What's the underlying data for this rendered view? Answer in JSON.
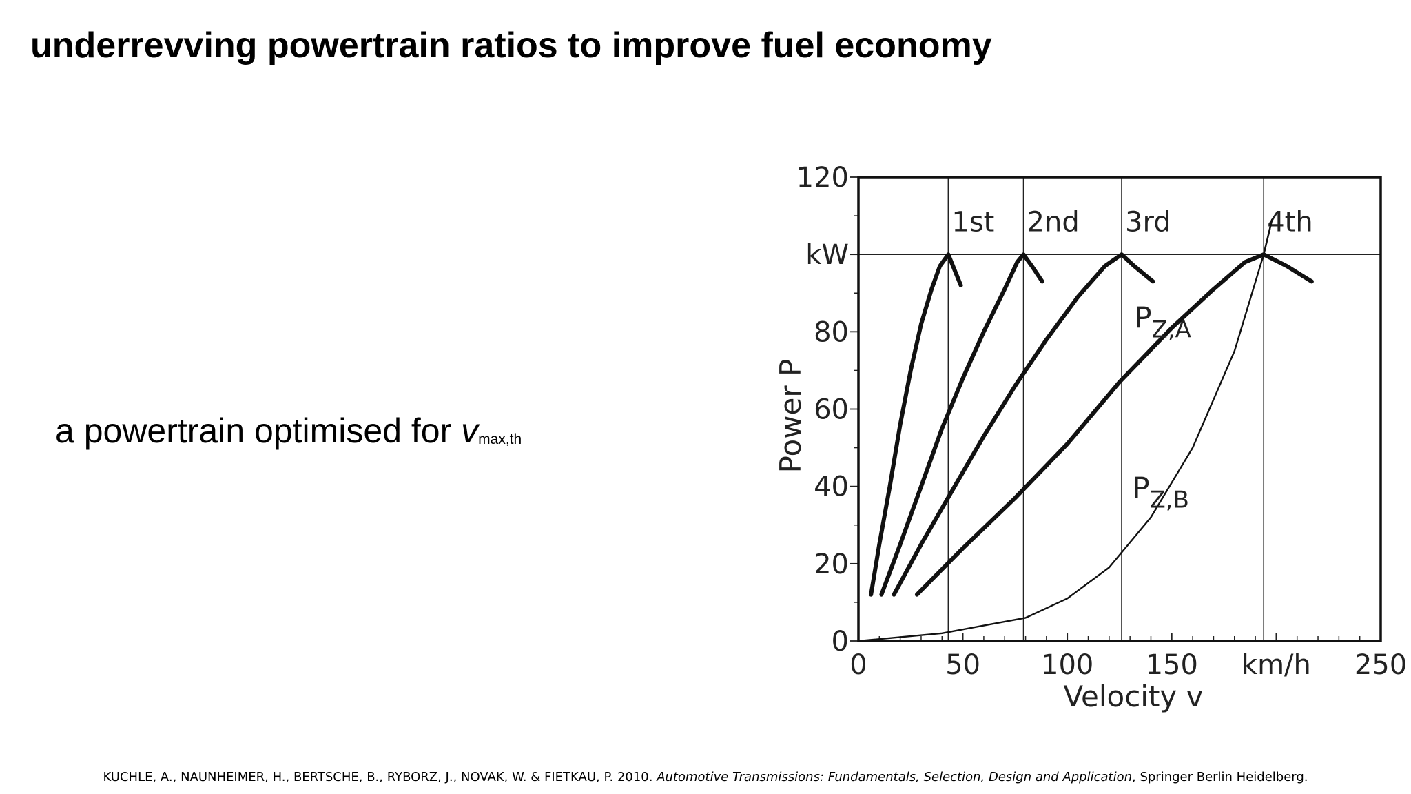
{
  "title": "underrevving powertrain ratios to improve fuel economy",
  "bullet": {
    "text": "a powertrain optimised for ",
    "var": "v",
    "sub": "max,th"
  },
  "reference": {
    "authors": "KUCHLE, A., NAUNHEIMER, H., BERTSCHE, B., RYBORZ, J., NOVAK, W. & FIETKAU, P. 2010. ",
    "book": "Automotive Transmissions: Fundamentals, Selection, Design and Application",
    "publisher": ", Springer Berlin Heidelberg."
  },
  "chart_data": {
    "type": "line",
    "xlabel": "Velocity v",
    "ylabel": "Power P",
    "xlim": [
      0,
      250
    ],
    "ylim": [
      0,
      120
    ],
    "x_ticks": [
      {
        "value": 0,
        "label": "0"
      },
      {
        "value": 50,
        "label": "50"
      },
      {
        "value": 100,
        "label": "100"
      },
      {
        "value": 150,
        "label": "150"
      },
      {
        "value": 200,
        "label": "km/h"
      },
      {
        "value": 250,
        "label": "250"
      }
    ],
    "y_ticks": [
      {
        "value": 0,
        "label": "0"
      },
      {
        "value": 20,
        "label": "20"
      },
      {
        "value": 40,
        "label": "40"
      },
      {
        "value": 60,
        "label": "60"
      },
      {
        "value": 80,
        "label": "80"
      },
      {
        "value": 100,
        "label": "kW"
      },
      {
        "value": 120,
        "label": "120"
      }
    ],
    "max_power_line": 100,
    "gear_lines": [
      {
        "label": "1st",
        "x": 43
      },
      {
        "label": "2nd",
        "x": 79
      },
      {
        "label": "3rd",
        "x": 126
      },
      {
        "label": "4th",
        "x": 194
      }
    ],
    "gear_curves": [
      {
        "label": "1st",
        "points": [
          [
            6,
            12
          ],
          [
            10,
            25
          ],
          [
            15,
            40
          ],
          [
            20,
            56
          ],
          [
            25,
            70
          ],
          [
            30,
            82
          ],
          [
            35,
            91
          ],
          [
            39,
            97
          ],
          [
            43,
            100
          ],
          [
            46,
            96
          ],
          [
            49,
            92
          ]
        ]
      },
      {
        "label": "2nd",
        "points": [
          [
            11,
            12
          ],
          [
            20,
            25
          ],
          [
            30,
            40
          ],
          [
            40,
            55
          ],
          [
            50,
            68
          ],
          [
            60,
            80
          ],
          [
            70,
            91
          ],
          [
            76,
            98
          ],
          [
            79,
            100
          ],
          [
            83,
            97
          ],
          [
            88,
            93
          ]
        ]
      },
      {
        "label": "3rd",
        "points": [
          [
            17,
            12
          ],
          [
            30,
            25
          ],
          [
            45,
            39
          ],
          [
            60,
            53
          ],
          [
            75,
            66
          ],
          [
            90,
            78
          ],
          [
            105,
            89
          ],
          [
            118,
            97
          ],
          [
            126,
            100
          ],
          [
            132,
            97
          ],
          [
            141,
            93
          ]
        ]
      },
      {
        "label": "4th",
        "points": [
          [
            28,
            12
          ],
          [
            50,
            24
          ],
          [
            75,
            37
          ],
          [
            100,
            51
          ],
          [
            125,
            67
          ],
          [
            150,
            81
          ],
          [
            170,
            91
          ],
          [
            185,
            98
          ],
          [
            194,
            100
          ],
          [
            205,
            97
          ],
          [
            217,
            93
          ]
        ]
      }
    ],
    "resistance_curves": [
      {
        "label_main": "P",
        "label_sub": "Z,A",
        "label_at": [
          132,
          81
        ],
        "points": [
          [
            150,
            81
          ],
          [
            170,
            91
          ],
          [
            185,
            98
          ],
          [
            194,
            100
          ],
          [
            198,
            109
          ]
        ]
      },
      {
        "label_main": "P",
        "label_sub": "Z,B",
        "label_at": [
          131,
          37
        ],
        "points": [
          [
            0,
            0
          ],
          [
            20,
            1
          ],
          [
            40,
            2
          ],
          [
            60,
            4
          ],
          [
            80,
            6
          ],
          [
            100,
            11
          ],
          [
            120,
            19
          ],
          [
            140,
            32
          ],
          [
            160,
            50
          ],
          [
            180,
            75
          ],
          [
            194,
            100
          ],
          [
            198,
            109
          ]
        ]
      }
    ]
  }
}
